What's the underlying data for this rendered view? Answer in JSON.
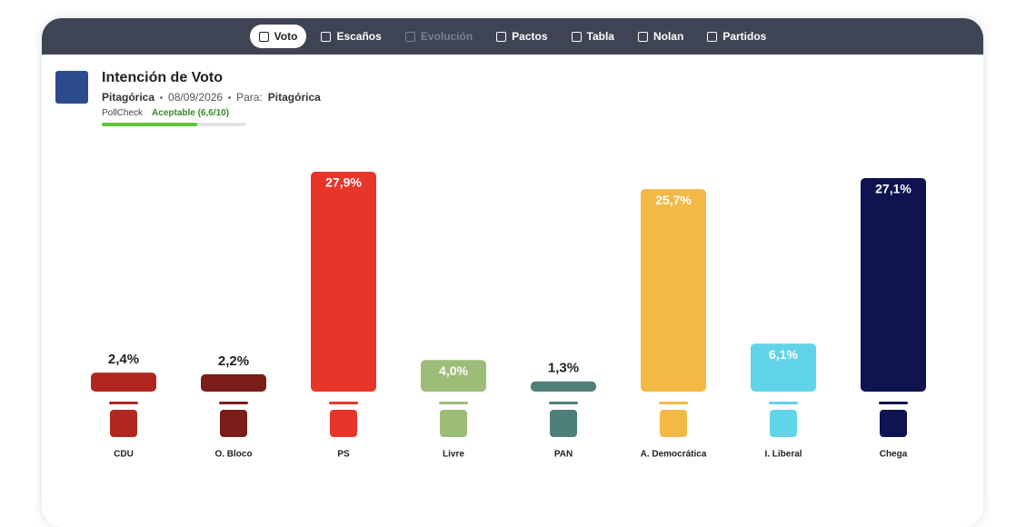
{
  "nav": {
    "tabs": [
      "Voto",
      "Escaños",
      "Evolución",
      "Pactos",
      "Tabla",
      "Nolan",
      "Partidos"
    ]
  },
  "header": {
    "title": "Intención de Voto",
    "source": "Pitagórica",
    "date": "08/09/2026",
    "for_label": "Para:",
    "client": "Pitagórica",
    "pollcheck": {
      "label": "PollCheck",
      "rating": "Aceptable (6,6/10)",
      "score": 6.6,
      "max": 10
    }
  },
  "chart_data": {
    "type": "bar",
    "categories": [
      "CDU",
      "O. Bloco",
      "PS",
      "Livre",
      "PAN",
      "A. Democrática",
      "I. Liberal",
      "Chega"
    ],
    "values": [
      2.4,
      2.2,
      27.9,
      4.0,
      1.3,
      25.7,
      6.1,
      27.1
    ],
    "value_labels": [
      "2,4%",
      "2,2%",
      "27,9%",
      "4,0%",
      "1,3%",
      "25,7%",
      "6,1%",
      "27,1%"
    ],
    "colors": [
      "#b0271f",
      "#7b1c19",
      "#e8352a",
      "#9dbc78",
      "#4f7f79",
      "#f3b945",
      "#62d4e9",
      "#0f134f"
    ]
  }
}
